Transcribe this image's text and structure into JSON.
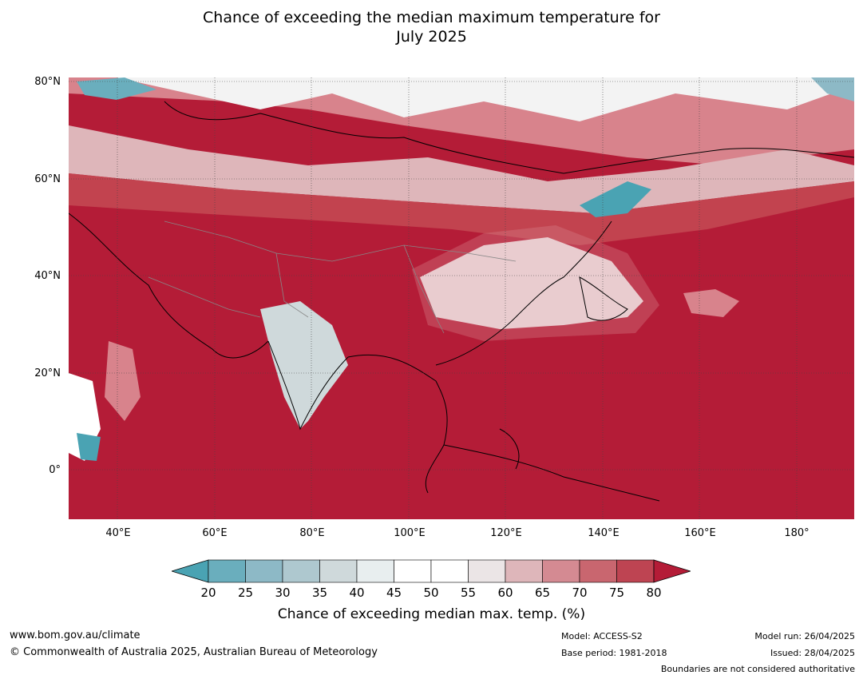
{
  "title_line1": "Chance of exceeding the median maximum temperature for",
  "title_line2": "July 2025",
  "map": {
    "lat_labels": [
      "80°N",
      "60°N",
      "40°N",
      "20°N",
      "0°"
    ],
    "lon_labels": [
      "40°E",
      "60°E",
      "80°E",
      "100°E",
      "120°E",
      "140°E",
      "160°E",
      "180°"
    ],
    "colors": {
      "below": "#4aa3b3",
      "hot": "#b41c37",
      "warm": "#c2434f",
      "mild": "#d8838c",
      "neutral": "#f3f3f3",
      "cool": "#a9c7cf",
      "coast": "#000000",
      "border": "#888888"
    }
  },
  "colorbar": {
    "ticks": [
      "20",
      "25",
      "30",
      "35",
      "40",
      "45",
      "50",
      "55",
      "60",
      "65",
      "70",
      "75",
      "80"
    ],
    "colors": [
      "#4aa3b3",
      "#6aaebd",
      "#8db9c6",
      "#aec8cf",
      "#cfd9db",
      "#e8eeef",
      "#ffffff",
      "#ffffff",
      "#ebe5e6",
      "#deb6ba",
      "#d48a92",
      "#c9666f",
      "#be4452",
      "#b41c37"
    ],
    "label": "Chance of exceeding median max. temp. (%)"
  },
  "footer": {
    "website": "www.bom.gov.au/climate",
    "copyright": "© Commonwealth of Australia 2025, Australian Bureau of Meteorology",
    "model": "Model: ACCESS-S2",
    "base_period": "Base period: 1981-2018",
    "model_run": "Model run: 26/04/2025",
    "issued": "Issued: 28/04/2025",
    "disclaimer": "Boundaries are not considered authoritative"
  }
}
